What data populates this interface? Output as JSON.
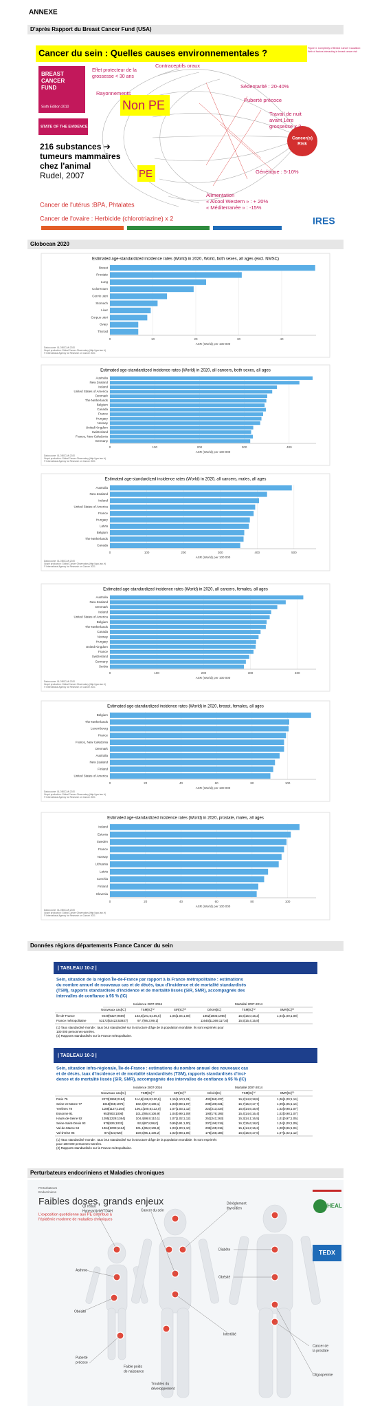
{
  "annexe": "ANNEXE",
  "sections": [
    "D'après Rapport du Breast Cancer Fund (USA)",
    "Globocan 2020",
    "Données régions départements France Cancer du sein",
    "Perturbateurs endocriniens et Maladies chroniques"
  ],
  "infographic1": {
    "title": "Cancer du sein : Quelles causes environnementales ?",
    "book": [
      "BREAST",
      "CANCER",
      "FUND"
    ],
    "edition": "Sixth Edition 2010",
    "state": "STATE OF THE EVIDENCE:",
    "protective": [
      "Effet protecteur de la",
      "grossesse < 30 ans"
    ],
    "radiation": "Rayonnements",
    "contraceptives": "Contraceptifs oraux",
    "non_pe": "Non PE",
    "pe": "PE",
    "substances": [
      "216 substances ➔",
      "tumeurs mammaires",
      "chez l'animal"
    ],
    "rudel": "Rudel, 2007",
    "sedentary": "Sédentarité : 20-40%",
    "puberty": "Puberté précoce",
    "night": [
      "Travail de nuit",
      "avant 1ère",
      "grossesse x 2"
    ],
    "risk": [
      "Cancer(s)",
      "Risk"
    ],
    "genetics": "Génétique : 5-10%",
    "food": [
      "Alimentation",
      "« Alcool Western » : + 20%",
      "« Méditerranée » : -15%"
    ],
    "uterus": "Cancer de l'utérus :BPA, Phtalates",
    "ovary": "Cancer de l'ovaire : Herbicide (chlorotriazine) x 2",
    "figure_caption": [
      "Figure 4. Complexity of Breast Cancer Causation:",
      "Web of factors interacting in breast cancer risk"
    ],
    "logo": "IRES"
  },
  "chart_data": [
    {
      "type": "bar",
      "orientation": "horizontal",
      "title": "Estimated age-standardized incidence rates (World) in 2020, World, both sexes, all ages (excl. NMSC)",
      "categories": [
        "Breast",
        "Prostate",
        "Lung",
        "Colorectum",
        "Cervix uteri",
        "Stomach",
        "Liver",
        "Corpus uteri",
        "Ovary",
        "Thyroid"
      ],
      "values": [
        47.8,
        30.7,
        22.4,
        19.5,
        13.3,
        11.1,
        9.5,
        8.7,
        6.6,
        6.6
      ],
      "color": "#5aaee6",
      "xlim": [
        0,
        48
      ],
      "xticks": [
        0,
        10,
        20,
        30,
        40
      ],
      "xlabel": "ASR (World) per 100 000",
      "grid": true,
      "source": [
        "Data source: GLOBOCAN 2020",
        "Graph production: Global Cancer Observatory (http://gco.iarc.fr)",
        "© International Agency for Research on Cancer 2021"
      ]
    },
    {
      "type": "bar",
      "orientation": "horizontal",
      "title": "Estimated age-standardized incidence rates (World) in 2020, all cancers, both sexes, all ages",
      "categories": [
        "Australia",
        "New Zealand",
        "Ireland",
        "United States of America",
        "Denmark",
        "The Netherlands",
        "Belgium",
        "Canada",
        "France",
        "Hungary",
        "Norway",
        "United Kingdom",
        "Switzerland",
        "France, New Caledonia",
        "Germany"
      ],
      "values": [
        452.4,
        422.9,
        372.8,
        362.2,
        351.1,
        349.1,
        345.2,
        348.0,
        341.9,
        338.2,
        335.4,
        319.9,
        315.2,
        319.0,
        313.1
      ],
      "color": "#5aaee6",
      "xlim": [
        0,
        460
      ],
      "xticks": [
        0,
        100,
        200,
        300,
        400
      ],
      "xlabel": "ASR (World) per 100 000",
      "grid": true,
      "source": [
        "Data source: GLOBOCAN 2020",
        "Graph production: Global Cancer Observatory (http://gco.iarc.fr)",
        "© International Agency for Research on Cancer 2021"
      ]
    },
    {
      "type": "bar",
      "orientation": "horizontal",
      "title": "Estimated age-standardized incidence rates (World) in 2020, all cancers, males, all ages",
      "categories": [
        "Australia",
        "New Zealand",
        "Ireland",
        "United States of America",
        "France",
        "Hungary",
        "Latvia",
        "Belgium",
        "The Netherlands",
        "Canada"
      ],
      "values": [
        494.2,
        426.9,
        405.0,
        394.7,
        390.5,
        380.2,
        377.5,
        365.0,
        363.1,
        354.1
      ],
      "color": "#5aaee6",
      "xlim": [
        0,
        560
      ],
      "xticks": [
        0,
        100,
        200,
        300,
        400,
        500
      ],
      "xlabel": "ASR (World) per 100 000",
      "grid": true,
      "source": [
        "Data source: GLOBOCAN 2020",
        "Graph production: Global Cancer Observatory (http://gco.iarc.fr)",
        "© International Agency for Research on Cancer 2021"
      ]
    },
    {
      "type": "bar",
      "orientation": "horizontal",
      "title": "Estimated age-standardized incidence rates (World) in 2020, all cancers, females, all ages",
      "categories": [
        "Australia",
        "New Zealand",
        "Denmark",
        "Ireland",
        "United States of America",
        "Belgium",
        "The Netherlands",
        "Canada",
        "Norway",
        "Hungary",
        "United Kingdom",
        "France",
        "Switzerland",
        "Germany",
        "Serbia"
      ],
      "values": [
        412.8,
        375.3,
        357.3,
        344.2,
        341.1,
        334.6,
        332.8,
        321.6,
        317.3,
        312.0,
        311.1,
        306.5,
        297.4,
        290.2,
        286.1
      ],
      "color": "#5aaee6",
      "xlim": [
        0,
        440
      ],
      "xticks": [
        0,
        100,
        200,
        300,
        400
      ],
      "xlabel": "ASR (World) per 100 000",
      "grid": true,
      "source": [
        "Data source: GLOBOCAN 2020",
        "Graph production: Global Cancer Observatory (http://gco.iarc.fr)",
        "© International Agency for Research on Cancer 2021"
      ]
    },
    {
      "type": "bar",
      "orientation": "horizontal",
      "title": "Estimated age-standardized incidence rates (World) in 2020, breast, females, all ages",
      "categories": [
        "Belgium",
        "The Netherlands",
        "Luxembourg",
        "France",
        "France, New Caledonia",
        "Denmark",
        "Australia",
        "New Zealand",
        "Finland",
        "United States of America"
      ],
      "values": [
        113.2,
        100.9,
        100.6,
        99.1,
        98.0,
        98.0,
        95.5,
        92.9,
        91.9,
        90.3
      ],
      "color": "#5aaee6",
      "xlim": [
        0,
        116
      ],
      "xticks": [
        0,
        20,
        40,
        60,
        80,
        100
      ],
      "xlabel": "ASR (World) per 100 000",
      "grid": true,
      "source": [
        "Data source: GLOBOCAN 2020",
        "Graph production: Global Cancer Observatory (http://gco.iarc.fr)",
        "© International Agency for Research on Cancer 2021"
      ]
    },
    {
      "type": "bar",
      "orientation": "horizontal",
      "title": "Estimated age-standardized incidence rates (World) in 2020, prostate, males, all ages",
      "categories": [
        "Ireland",
        "Estonia",
        "Sweden",
        "France",
        "Norway",
        "Lithuania",
        "Latvia",
        "Czechia",
        "Finland",
        "Slovenia"
      ],
      "values": [
        106.7,
        101.8,
        99.4,
        98.0,
        96.6,
        95.0,
        89.0,
        86.8,
        83.5,
        82.6
      ],
      "color": "#5aaee6",
      "xlim": [
        0,
        116
      ],
      "xticks": [
        0,
        20,
        40,
        60,
        80,
        100
      ],
      "xlabel": "ASR (World) per 100 000",
      "grid": true,
      "source": [
        "Data source: GLOBOCAN 2020",
        "Graph production: Global Cancer Observatory (http://gco.iarc.fr)",
        "© International Agency for Research on Cancer 2021"
      ]
    }
  ],
  "tables": [
    {
      "caption": "| TABLEAU 10-2 |",
      "title": [
        "Sein, situation de la région Île-de-France par rapport à la France métropolitaine : estimations",
        "du nombre annuel de nouveaux cas et de décès, taux d'incidence et de mortalité standardisés",
        "(TSM), rapports standardisés d'incidence et de mortalité lissés (SIR, SMR), accompagnés des",
        "intervalles de confiance à 95 % (IC)"
      ],
      "groups": [
        "Incidence 2007-2016",
        "Mortalité 2007-2014"
      ],
      "headers": [
        "Nouveaux cas[IC]",
        "TSM[IC]⁽¹⁾",
        "SIR[IC]⁽²⁾",
        "Décès[IC]",
        "TSM[IC]⁽¹⁾",
        "SMR[IC]⁽²⁾"
      ],
      "rows": [
        [
          "Île-de-France",
          "9449[9327;9569]",
          "103,5[101,5;105,5]",
          "1,06[1,04;1,08]",
          "1862[1803;1950]",
          "15,6[15,0;16,2]",
          "1,04[1,00;1,08]"
        ],
        [
          "France métropolitaine",
          "53172[52423;53937]",
          "97,7[96,3;99,1]",
          "",
          "11645[11369;11716]",
          "15,5[15,4;15,8]",
          ""
        ]
      ],
      "notes": [
        "(1) Taux standardisé monde : taux brut standardisé sur la structure d'âge de la population mondiale. Ils sont exprimés pour",
        "100 000 personnes-années.",
        "(2) Rapports standardisés sur la France métropolitaine."
      ]
    },
    {
      "caption": "| TABLEAU 10-3 |",
      "title": [
        "Sein, situation infra-régionale, Île-de-France : estimations du nombre annuel des nouveaux cas",
        "et de décès, taux d'incidence et de mortalité standardisés (TSM), rapports standardisés d'inci-",
        "dence et de mortalité lissés (SIR, SMR), accompagnés des intervalles de confiance à 95 % (IC)"
      ],
      "groups": [
        "Incidence 2007-2016",
        "Mortalité 2007-2014"
      ],
      "headers": [
        "Nouveaux cas[IC]",
        "TSM[IC]⁽¹⁾",
        "SIR[IC]⁽²⁾",
        "Décès[IC]",
        "TSM[IC]⁽¹⁾",
        "SMR[IC]⁽²⁾"
      ],
      "rows": [
        [
          "Paris 75",
          "2073[1968;2184]",
          "114,6[108,8;120,6]",
          "1,15[1,10;1,21]",
          "402[366;437]",
          "16,2[14,8;18,8]",
          "1,06[1,00;1,14]"
        ],
        [
          "Seine-et-Marne 77",
          "1018[965;1075]",
          "102,4[97,3;108,1]",
          "1,03[0,99;1,07]",
          "209[189;231]",
          "16,7[15,0;17,7]",
          "1,09[1,05;1,14]"
        ],
        [
          "Yvelines 78",
          "1188[1127;1254]",
          "106,1[100,6;112,0]",
          "1,07[1,03;1,12]",
          "223[213;234]",
          "15,8[14,6;16,9]",
          "1,02[0,98;1,07]"
        ],
        [
          "Essonne 91",
          "953[903;1006]",
          "101,2[95,8;106,9]",
          "1,04[0,99;1,09]",
          "190[176;195]",
          "15,4[14,6;16,4]",
          "1,02[0,98;1,07]"
        ],
        [
          "Hauts-de-Seine 92",
          "1295[1229;1364]",
          "104,4[98,9;110,1]",
          "1,07[1,02;1,12]",
          "252[241;263]",
          "15,3[14,1;16,5]",
          "1,01[0,97;1,05]"
        ],
        [
          "Seine-Saint-Denis 93",
          "979[926;1032]",
          "92,9[87,8;98,0]",
          "0,95[0,91;1,00]",
          "207[196;219]",
          "16,7[15,6;18,0]",
          "1,04[1,00;1,09]"
        ],
        [
          "Val-de-Marne 94",
          "1064[1009;1124]",
          "101,1[95,8;106,8]",
          "1,03[1,00;1,10]",
          "205[195;215]",
          "15,1[14,2;16,2]",
          "1,00[0,96;1,04]"
        ],
        [
          "Val-d'Oise 95",
          "871[823;920]",
          "100,5[95,1;106,2]",
          "1,02[0,98;1,06]",
          "176[166;186]",
          "16,5[15,6;17,6]",
          "1,07[1,02;1,12]"
        ]
      ],
      "notes": [
        "(1) Taux standardisé monde : taux brut standardisé sur la structure d'âge de la population mondiale. Ils sont exprimés",
        "pour 100 000 personnes-années.",
        "(2) Rapports standardisés sur la France métropolitaine."
      ]
    }
  ],
  "infographic2": {
    "kicker": [
      "Perturbateurs",
      "Endocriniens"
    ],
    "title": "Faibles doses, grands enjeux",
    "subtitle": [
      "L'exposition quotidienne aux PE contribue à",
      "l'épidémie moderne de maladies chroniques"
    ],
    "labels": [
      "QI réduit",
      "Hyperactivité/TDAH",
      "Cancer du sein",
      "Asthme",
      "Obésité",
      "Puberté",
      "précoce",
      "Faible poids",
      "de naissance",
      "Troubles du",
      "développement",
      "Dérèglement",
      "thyroïdien",
      "Diabète",
      "Obésité",
      "Infertilité",
      "Cancer de",
      "la prostate",
      "Oligospermie"
    ],
    "heal": "HEAL",
    "tedx": "TEDX"
  }
}
